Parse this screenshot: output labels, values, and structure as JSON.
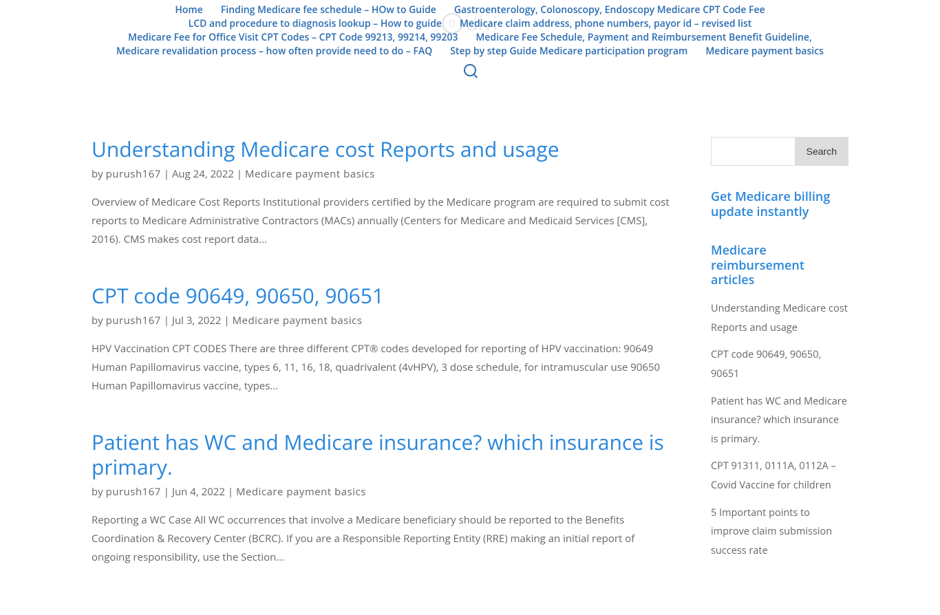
{
  "nav": {
    "items": [
      "Home",
      "Finding Medicare fee schedule – HOw to Guide",
      "Gastroenterology, Colonoscopy, Endoscopy Medicare CPT Code Fee",
      "LCD and procedure to diagnosis lookup – How to guide",
      "Medicare claim address, phone numbers, payor id – revised list",
      "Medicare Fee for Office Visit CPT Codes – CPT Code 99213, 99214, 99203",
      "Medicare Fee Schedule, Payment and Reimbursement Benefit Guideline,",
      "Medicare revalidation process – how often provide need to do – FAQ",
      "Step by step Guide Medicare participation program",
      "Medicare payment basics"
    ],
    "logo_text": "divi"
  },
  "posts": [
    {
      "title": "Understanding Medicare cost Reports and usage",
      "by_prefix": "by ",
      "author": "purush167",
      "date": "Aug 24, 2022",
      "category": "Medicare payment basics",
      "excerpt": "Overview of Medicare Cost Reports Institutional providers certified by the Medicare program are required to submit cost reports to Medicare Administrative Contractors (MACs) annually (Centers for Medicare and Medicaid Services [CMS], 2016). CMS makes cost report data..."
    },
    {
      "title": "CPT code 90649, 90650, 90651",
      "by_prefix": "by ",
      "author": "purush167",
      "date": "Jul 3, 2022",
      "category": "Medicare payment basics",
      "excerpt": "HPV Vaccination CPT CODES There are three different CPT® codes developed for reporting of HPV vaccination: 90649 Human Papillomavirus vaccine, types 6, 11, 16, 18, quadrivalent (4vHPV), 3 dose schedule, for intramuscular use 90650 Human Papillomavirus vaccine, types..."
    },
    {
      "title": "Patient has WC and Medicare insurance? which insurance is primary.",
      "by_prefix": "by ",
      "author": "purush167",
      "date": "Jun 4, 2022",
      "category": "Medicare payment basics",
      "excerpt": "Reporting a WC Case All WC occurrences that involve a Medicare beneficiary should be reported to the Benefits Coordination & Recovery Center (BCRC). If you are a Responsible Reporting Entity (RRE) making an initial report of ongoing responsibility, use the Section..."
    }
  ],
  "sidebar": {
    "search_button": "Search",
    "widget1_title": "Get Medicare billing update instantly",
    "widget2_title": "Medicare reimbursement articles",
    "recent_posts": [
      "Understanding Medicare cost Reports and usage",
      "CPT code 90649, 90650, 90651",
      "Patient has WC and Medicare insurance? which insurance is primary.",
      "CPT 91311, 0111A, 0112A – Covid Vaccine for children",
      "5 Important points to improve claim submission success rate"
    ]
  },
  "separator": " | "
}
